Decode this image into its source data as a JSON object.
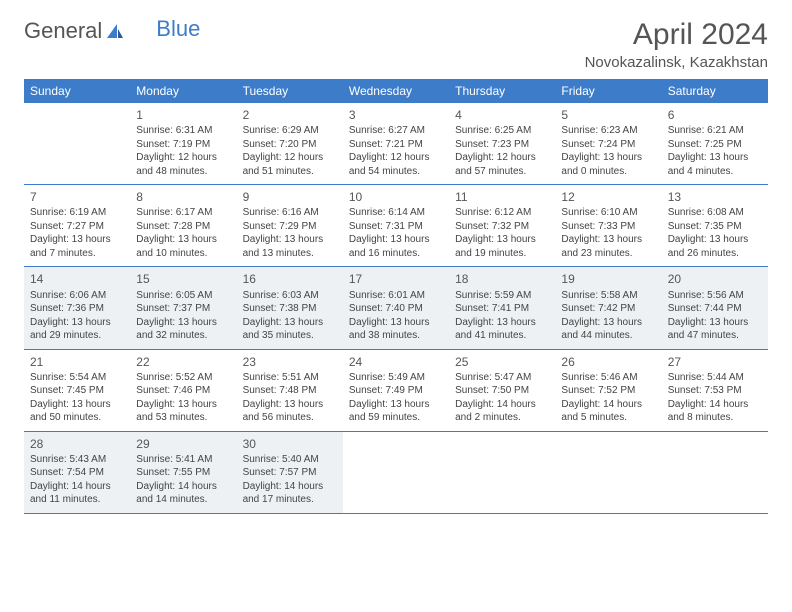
{
  "brand": {
    "part1": "General",
    "part2": "Blue"
  },
  "title": "April 2024",
  "location": "Novokazalinsk, Kazakhstan",
  "colors": {
    "header_bg": "#3d7cc9",
    "header_text": "#ffffff",
    "shaded_bg": "#eef1f3",
    "text": "#444444",
    "border": "#3d7cc9"
  },
  "dayHeaders": [
    "Sunday",
    "Monday",
    "Tuesday",
    "Wednesday",
    "Thursday",
    "Friday",
    "Saturday"
  ],
  "weeks": [
    [
      {
        "n": "",
        "sr": "",
        "ss": "",
        "dl1": "",
        "dl2": ""
      },
      {
        "n": "1",
        "sr": "Sunrise: 6:31 AM",
        "ss": "Sunset: 7:19 PM",
        "dl1": "Daylight: 12 hours",
        "dl2": "and 48 minutes."
      },
      {
        "n": "2",
        "sr": "Sunrise: 6:29 AM",
        "ss": "Sunset: 7:20 PM",
        "dl1": "Daylight: 12 hours",
        "dl2": "and 51 minutes."
      },
      {
        "n": "3",
        "sr": "Sunrise: 6:27 AM",
        "ss": "Sunset: 7:21 PM",
        "dl1": "Daylight: 12 hours",
        "dl2": "and 54 minutes."
      },
      {
        "n": "4",
        "sr": "Sunrise: 6:25 AM",
        "ss": "Sunset: 7:23 PM",
        "dl1": "Daylight: 12 hours",
        "dl2": "and 57 minutes."
      },
      {
        "n": "5",
        "sr": "Sunrise: 6:23 AM",
        "ss": "Sunset: 7:24 PM",
        "dl1": "Daylight: 13 hours",
        "dl2": "and 0 minutes."
      },
      {
        "n": "6",
        "sr": "Sunrise: 6:21 AM",
        "ss": "Sunset: 7:25 PM",
        "dl1": "Daylight: 13 hours",
        "dl2": "and 4 minutes."
      }
    ],
    [
      {
        "n": "7",
        "sr": "Sunrise: 6:19 AM",
        "ss": "Sunset: 7:27 PM",
        "dl1": "Daylight: 13 hours",
        "dl2": "and 7 minutes."
      },
      {
        "n": "8",
        "sr": "Sunrise: 6:17 AM",
        "ss": "Sunset: 7:28 PM",
        "dl1": "Daylight: 13 hours",
        "dl2": "and 10 minutes."
      },
      {
        "n": "9",
        "sr": "Sunrise: 6:16 AM",
        "ss": "Sunset: 7:29 PM",
        "dl1": "Daylight: 13 hours",
        "dl2": "and 13 minutes."
      },
      {
        "n": "10",
        "sr": "Sunrise: 6:14 AM",
        "ss": "Sunset: 7:31 PM",
        "dl1": "Daylight: 13 hours",
        "dl2": "and 16 minutes."
      },
      {
        "n": "11",
        "sr": "Sunrise: 6:12 AM",
        "ss": "Sunset: 7:32 PM",
        "dl1": "Daylight: 13 hours",
        "dl2": "and 19 minutes."
      },
      {
        "n": "12",
        "sr": "Sunrise: 6:10 AM",
        "ss": "Sunset: 7:33 PM",
        "dl1": "Daylight: 13 hours",
        "dl2": "and 23 minutes."
      },
      {
        "n": "13",
        "sr": "Sunrise: 6:08 AM",
        "ss": "Sunset: 7:35 PM",
        "dl1": "Daylight: 13 hours",
        "dl2": "and 26 minutes."
      }
    ],
    [
      {
        "n": "14",
        "sr": "Sunrise: 6:06 AM",
        "ss": "Sunset: 7:36 PM",
        "dl1": "Daylight: 13 hours",
        "dl2": "and 29 minutes."
      },
      {
        "n": "15",
        "sr": "Sunrise: 6:05 AM",
        "ss": "Sunset: 7:37 PM",
        "dl1": "Daylight: 13 hours",
        "dl2": "and 32 minutes."
      },
      {
        "n": "16",
        "sr": "Sunrise: 6:03 AM",
        "ss": "Sunset: 7:38 PM",
        "dl1": "Daylight: 13 hours",
        "dl2": "and 35 minutes."
      },
      {
        "n": "17",
        "sr": "Sunrise: 6:01 AM",
        "ss": "Sunset: 7:40 PM",
        "dl1": "Daylight: 13 hours",
        "dl2": "and 38 minutes."
      },
      {
        "n": "18",
        "sr": "Sunrise: 5:59 AM",
        "ss": "Sunset: 7:41 PM",
        "dl1": "Daylight: 13 hours",
        "dl2": "and 41 minutes."
      },
      {
        "n": "19",
        "sr": "Sunrise: 5:58 AM",
        "ss": "Sunset: 7:42 PM",
        "dl1": "Daylight: 13 hours",
        "dl2": "and 44 minutes."
      },
      {
        "n": "20",
        "sr": "Sunrise: 5:56 AM",
        "ss": "Sunset: 7:44 PM",
        "dl1": "Daylight: 13 hours",
        "dl2": "and 47 minutes."
      }
    ],
    [
      {
        "n": "21",
        "sr": "Sunrise: 5:54 AM",
        "ss": "Sunset: 7:45 PM",
        "dl1": "Daylight: 13 hours",
        "dl2": "and 50 minutes."
      },
      {
        "n": "22",
        "sr": "Sunrise: 5:52 AM",
        "ss": "Sunset: 7:46 PM",
        "dl1": "Daylight: 13 hours",
        "dl2": "and 53 minutes."
      },
      {
        "n": "23",
        "sr": "Sunrise: 5:51 AM",
        "ss": "Sunset: 7:48 PM",
        "dl1": "Daylight: 13 hours",
        "dl2": "and 56 minutes."
      },
      {
        "n": "24",
        "sr": "Sunrise: 5:49 AM",
        "ss": "Sunset: 7:49 PM",
        "dl1": "Daylight: 13 hours",
        "dl2": "and 59 minutes."
      },
      {
        "n": "25",
        "sr": "Sunrise: 5:47 AM",
        "ss": "Sunset: 7:50 PM",
        "dl1": "Daylight: 14 hours",
        "dl2": "and 2 minutes."
      },
      {
        "n": "26",
        "sr": "Sunrise: 5:46 AM",
        "ss": "Sunset: 7:52 PM",
        "dl1": "Daylight: 14 hours",
        "dl2": "and 5 minutes."
      },
      {
        "n": "27",
        "sr": "Sunrise: 5:44 AM",
        "ss": "Sunset: 7:53 PM",
        "dl1": "Daylight: 14 hours",
        "dl2": "and 8 minutes."
      }
    ],
    [
      {
        "n": "28",
        "sr": "Sunrise: 5:43 AM",
        "ss": "Sunset: 7:54 PM",
        "dl1": "Daylight: 14 hours",
        "dl2": "and 11 minutes."
      },
      {
        "n": "29",
        "sr": "Sunrise: 5:41 AM",
        "ss": "Sunset: 7:55 PM",
        "dl1": "Daylight: 14 hours",
        "dl2": "and 14 minutes."
      },
      {
        "n": "30",
        "sr": "Sunrise: 5:40 AM",
        "ss": "Sunset: 7:57 PM",
        "dl1": "Daylight: 14 hours",
        "dl2": "and 17 minutes."
      },
      {
        "n": "",
        "sr": "",
        "ss": "",
        "dl1": "",
        "dl2": ""
      },
      {
        "n": "",
        "sr": "",
        "ss": "",
        "dl1": "",
        "dl2": ""
      },
      {
        "n": "",
        "sr": "",
        "ss": "",
        "dl1": "",
        "dl2": ""
      },
      {
        "n": "",
        "sr": "",
        "ss": "",
        "dl1": "",
        "dl2": ""
      }
    ]
  ]
}
